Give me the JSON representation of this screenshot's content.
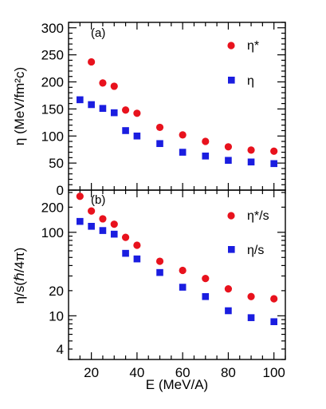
{
  "chart_data": [
    {
      "type": "scatter",
      "panel_label": "(a)",
      "xlabel": "E (MeV/A)",
      "ylabel": "η (MeV/fm²c)",
      "xlim": [
        10,
        105
      ],
      "ylim": [
        0,
        310
      ],
      "yscale": "linear",
      "x_ticks": [
        "20",
        "40",
        "60",
        "80",
        "100"
      ],
      "y_ticks": [
        "0",
        "50",
        "100",
        "150",
        "200",
        "250",
        "300"
      ],
      "grid": false,
      "legend_position": "top-right",
      "series": [
        {
          "name": "η*",
          "marker": "circle",
          "color": "#e8121d",
          "points": [
            {
              "x": 20,
              "y": 237
            },
            {
              "x": 25,
              "y": 198
            },
            {
              "x": 30,
              "y": 192
            },
            {
              "x": 35,
              "y": 148
            },
            {
              "x": 40,
              "y": 142
            },
            {
              "x": 50,
              "y": 116
            },
            {
              "x": 60,
              "y": 102
            },
            {
              "x": 70,
              "y": 90
            },
            {
              "x": 80,
              "y": 80
            },
            {
              "x": 90,
              "y": 74
            },
            {
              "x": 100,
              "y": 72
            }
          ]
        },
        {
          "name": "η",
          "marker": "square",
          "color": "#1a1de0",
          "points": [
            {
              "x": 15,
              "y": 167
            },
            {
              "x": 20,
              "y": 158
            },
            {
              "x": 25,
              "y": 151
            },
            {
              "x": 30,
              "y": 143
            },
            {
              "x": 35,
              "y": 110
            },
            {
              "x": 40,
              "y": 100
            },
            {
              "x": 50,
              "y": 86
            },
            {
              "x": 60,
              "y": 70
            },
            {
              "x": 70,
              "y": 63
            },
            {
              "x": 80,
              "y": 55
            },
            {
              "x": 90,
              "y": 52
            },
            {
              "x": 100,
              "y": 49
            }
          ]
        }
      ]
    },
    {
      "type": "scatter",
      "panel_label": "(b)",
      "xlabel": "E (MeV/A)",
      "ylabel": "η/s(ℏ/4π)",
      "xlim": [
        10,
        105
      ],
      "ylim": [
        3,
        320
      ],
      "yscale": "log",
      "x_ticks": [
        "20",
        "40",
        "60",
        "80",
        "100"
      ],
      "y_ticks": [
        "4",
        "10",
        "20",
        "100",
        "200"
      ],
      "grid": false,
      "legend_position": "top-right",
      "series": [
        {
          "name": "η*/s",
          "marker": "circle",
          "color": "#e8121d",
          "points": [
            {
              "x": 15,
              "y": 270
            },
            {
              "x": 20,
              "y": 180
            },
            {
              "x": 25,
              "y": 145
            },
            {
              "x": 30,
              "y": 125
            },
            {
              "x": 35,
              "y": 87
            },
            {
              "x": 40,
              "y": 70
            },
            {
              "x": 50,
              "y": 45
            },
            {
              "x": 60,
              "y": 35
            },
            {
              "x": 70,
              "y": 28
            },
            {
              "x": 80,
              "y": 21
            },
            {
              "x": 90,
              "y": 17
            },
            {
              "x": 100,
              "y": 16
            }
          ]
        },
        {
          "name": "η/s",
          "marker": "square",
          "color": "#1a1de0",
          "points": [
            {
              "x": 15,
              "y": 135
            },
            {
              "x": 20,
              "y": 118
            },
            {
              "x": 25,
              "y": 105
            },
            {
              "x": 30,
              "y": 95
            },
            {
              "x": 35,
              "y": 56
            },
            {
              "x": 40,
              "y": 48
            },
            {
              "x": 50,
              "y": 33
            },
            {
              "x": 60,
              "y": 22
            },
            {
              "x": 70,
              "y": 17
            },
            {
              "x": 80,
              "y": 11.5
            },
            {
              "x": 90,
              "y": 9.5
            },
            {
              "x": 100,
              "y": 8.5
            }
          ]
        }
      ]
    }
  ]
}
